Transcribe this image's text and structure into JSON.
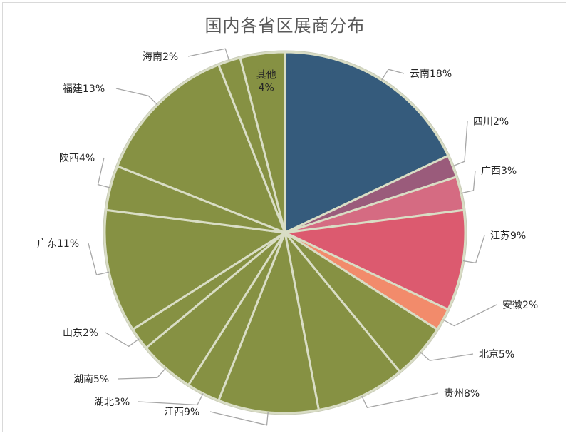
{
  "chart_data": {
    "type": "pie",
    "title": "国内各省区展商分布",
    "categories": [
      "云南",
      "四川",
      "广西",
      "江苏",
      "安徽",
      "北京",
      "贵州",
      "江西",
      "湖北",
      "湖南",
      "山东",
      "广东",
      "陕西",
      "福建",
      "海南",
      "其他"
    ],
    "values": [
      18,
      2,
      3,
      9,
      2,
      5,
      8,
      9,
      3,
      5,
      2,
      11,
      4,
      13,
      2,
      4
    ],
    "labels": [
      "云南18%",
      "四川2%",
      "广西3%",
      "江苏9%",
      "安徽2%",
      "北京5%",
      "贵州8%",
      "江西9%",
      "湖北3%",
      "湖南5%",
      "山东2%",
      "广东11%",
      "陕西4%",
      "福建13%",
      "海南2%",
      "其他\n4%"
    ],
    "colors": [
      "#355b7c",
      "#9a5b7b",
      "#d56b82",
      "#dc5a6f",
      "#f28b6b",
      "#869143",
      "#869143",
      "#869143",
      "#869143",
      "#869143",
      "#869143",
      "#869143",
      "#869143",
      "#869143",
      "#869143",
      "#869143"
    ],
    "slice_border_color": "#d9ddc5",
    "legend": "none",
    "start": "12 o'clock",
    "direction": "clockwise"
  }
}
